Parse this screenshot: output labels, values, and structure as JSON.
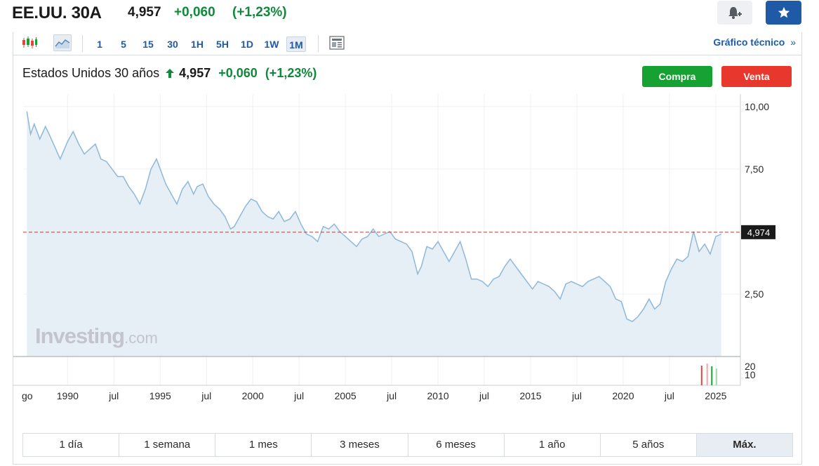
{
  "header": {
    "symbol": "EE.UU. 30A",
    "price": "4,957",
    "change": "+0,060",
    "change_pct": "(+1,23%)",
    "bell_icon": "bell-plus-icon",
    "star_icon": "star-icon"
  },
  "toolbar": {
    "intervals": [
      "1",
      "5",
      "15",
      "30",
      "1H",
      "5H",
      "1D",
      "1W",
      "1M"
    ],
    "active_interval": "1M",
    "tech_label": "Gráfico técnico",
    "tech_arrow": "»"
  },
  "instrument": {
    "name": "Estados Unidos 30 años",
    "price": "4,957",
    "change": "+0,060",
    "change_pct": "(+1,23%)",
    "buy_label": "Compra",
    "sell_label": "Venta"
  },
  "watermark": {
    "brand": "Investing",
    "suffix": ".com"
  },
  "colors": {
    "up": "#0e8a3a",
    "accent": "#1f5aa6",
    "buy": "#16a233",
    "sell": "#e8372c",
    "line": "#8fb8d8",
    "fill": "#e6eef6"
  },
  "chart_data": {
    "type": "area",
    "y_ticks": [
      "10,00",
      "7,50",
      "2,50"
    ],
    "y_tick_values": [
      10,
      7.5,
      2.5
    ],
    "current_label": "4,974",
    "current_value": 4.974,
    "volume_ticks": [
      "20",
      "10"
    ],
    "x_labels": [
      "go",
      "1990",
      "jul",
      "1995",
      "jul",
      "2000",
      "jul",
      "2005",
      "jul",
      "2010",
      "jul",
      "2015",
      "jul",
      "2020",
      "jul",
      "2025"
    ],
    "x_label_years": [
      1987.6,
      1990,
      1992.5,
      1995,
      1997.5,
      2000,
      2002.5,
      2005,
      2007.5,
      2010,
      2012.5,
      2015,
      2017.5,
      2020,
      2022.5,
      2025
    ],
    "series": [
      {
        "x": [
          1987.8,
          1988.0,
          1988.2,
          1988.5,
          1988.8,
          1989.0,
          1989.3,
          1989.6,
          1990.0,
          1990.3,
          1990.6,
          1990.9,
          1991.2,
          1991.5,
          1991.8,
          1992.1,
          1992.4,
          1992.7,
          1993.0,
          1993.3,
          1993.6,
          1993.9,
          1994.2,
          1994.5,
          1994.8,
          1995.0,
          1995.3,
          1995.6,
          1995.9,
          1996.2,
          1996.5,
          1996.8,
          1997.0,
          1997.3,
          1997.6,
          1997.9,
          1998.2,
          1998.5,
          1998.8,
          1999.0,
          1999.3,
          1999.6,
          1999.9,
          2000.2,
          2000.5,
          2000.8,
          2001.1,
          2001.4,
          2001.7,
          2002.0,
          2002.3,
          2002.6,
          2002.9,
          2003.2,
          2003.5,
          2003.8,
          2004.1,
          2004.4,
          2004.7,
          2005.0,
          2005.3,
          2005.6,
          2005.9,
          2006.2,
          2006.5,
          2006.8,
          2007.1,
          2007.4,
          2007.7,
          2008.0,
          2008.3,
          2008.6,
          2008.9,
          2009.1,
          2009.4,
          2009.7,
          2010.0,
          2010.3,
          2010.6,
          2010.9,
          2011.2,
          2011.5,
          2011.8,
          2012.1,
          2012.4,
          2012.7,
          2013.0,
          2013.3,
          2013.6,
          2013.9,
          2014.2,
          2014.5,
          2014.8,
          2015.1,
          2015.4,
          2015.7,
          2016.0,
          2016.3,
          2016.6,
          2016.9,
          2017.2,
          2017.5,
          2017.8,
          2018.1,
          2018.4,
          2018.7,
          2019.0,
          2019.3,
          2019.6,
          2019.9,
          2020.2,
          2020.5,
          2020.8,
          2021.1,
          2021.4,
          2021.7,
          2022.0,
          2022.3,
          2022.6,
          2022.9,
          2023.2,
          2023.5,
          2023.8,
          2024.1,
          2024.4,
          2024.7,
          2025.0,
          2025.3
        ],
        "y": [
          9.8,
          8.9,
          9.3,
          8.7,
          9.2,
          8.9,
          8.4,
          7.9,
          8.6,
          9.0,
          8.5,
          8.1,
          8.3,
          8.5,
          7.9,
          7.8,
          7.5,
          7.2,
          7.2,
          6.8,
          6.5,
          6.1,
          6.7,
          7.5,
          7.9,
          7.5,
          6.9,
          6.5,
          6.1,
          6.7,
          7.0,
          6.5,
          6.8,
          6.9,
          6.4,
          6.1,
          5.9,
          5.6,
          5.1,
          5.2,
          5.6,
          6.0,
          6.3,
          6.2,
          5.8,
          5.6,
          5.5,
          5.8,
          5.4,
          5.5,
          5.8,
          5.3,
          4.9,
          4.8,
          4.6,
          5.2,
          5.1,
          5.3,
          5.0,
          4.8,
          4.6,
          4.4,
          4.7,
          4.8,
          5.1,
          4.8,
          4.9,
          5.0,
          4.7,
          4.6,
          4.5,
          4.2,
          3.3,
          3.6,
          4.4,
          4.3,
          4.6,
          4.2,
          3.8,
          4.2,
          4.6,
          3.9,
          3.1,
          3.1,
          3.0,
          2.8,
          3.1,
          3.2,
          3.6,
          3.9,
          3.6,
          3.3,
          3.0,
          2.7,
          3.0,
          2.9,
          2.8,
          2.6,
          2.3,
          2.9,
          3.0,
          2.9,
          2.8,
          3.0,
          3.1,
          3.2,
          3.0,
          2.8,
          2.3,
          2.2,
          1.5,
          1.4,
          1.6,
          1.9,
          2.3,
          1.9,
          2.1,
          3.0,
          3.5,
          3.9,
          3.8,
          4.0,
          5.0,
          4.2,
          4.5,
          4.1,
          4.8,
          4.9
        ]
      }
    ]
  },
  "ranges": [
    "1 día",
    "1 semana",
    "1 mes",
    "3 meses",
    "6 meses",
    "1 año",
    "5 años",
    "Máx."
  ],
  "active_range": "Máx."
}
